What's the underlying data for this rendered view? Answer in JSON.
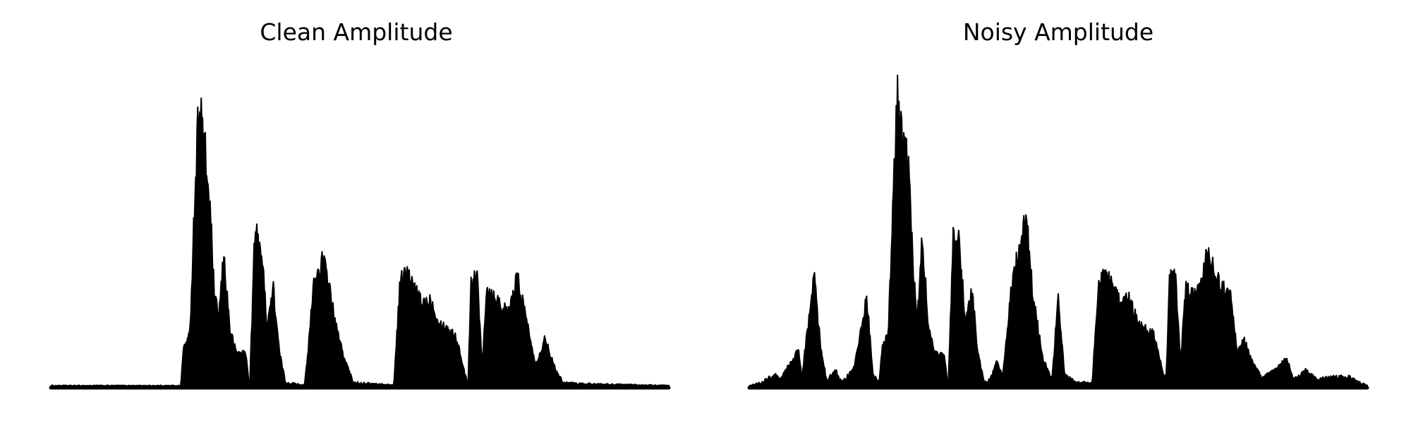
{
  "chart_data": [
    {
      "type": "area",
      "title": "Clean Amplitude",
      "xlabel": "",
      "ylabel": "",
      "ylim": [
        0,
        1.0
      ],
      "axes_visible": false,
      "grid": false,
      "series_color": "#000000",
      "envelope": [
        {
          "x": 0.0,
          "y": 0.008
        },
        {
          "x": 0.21,
          "y": 0.008
        },
        {
          "x": 0.215,
          "y": 0.14
        },
        {
          "x": 0.225,
          "y": 0.18
        },
        {
          "x": 0.232,
          "y": 0.6
        },
        {
          "x": 0.24,
          "y": 1.0
        },
        {
          "x": 0.25,
          "y": 0.8
        },
        {
          "x": 0.258,
          "y": 0.6
        },
        {
          "x": 0.265,
          "y": 0.3
        },
        {
          "x": 0.272,
          "y": 0.25
        },
        {
          "x": 0.28,
          "y": 0.45
        },
        {
          "x": 0.29,
          "y": 0.2
        },
        {
          "x": 0.3,
          "y": 0.12
        },
        {
          "x": 0.315,
          "y": 0.12
        },
        {
          "x": 0.322,
          "y": 0.01
        },
        {
          "x": 0.33,
          "y": 0.53
        },
        {
          "x": 0.34,
          "y": 0.49
        },
        {
          "x": 0.35,
          "y": 0.22
        },
        {
          "x": 0.36,
          "y": 0.34
        },
        {
          "x": 0.37,
          "y": 0.12
        },
        {
          "x": 0.38,
          "y": 0.02
        },
        {
          "x": 0.41,
          "y": 0.01
        },
        {
          "x": 0.415,
          "y": 0.09
        },
        {
          "x": 0.425,
          "y": 0.35
        },
        {
          "x": 0.44,
          "y": 0.44
        },
        {
          "x": 0.45,
          "y": 0.36
        },
        {
          "x": 0.46,
          "y": 0.22
        },
        {
          "x": 0.475,
          "y": 0.1
        },
        {
          "x": 0.49,
          "y": 0.02
        },
        {
          "x": 0.555,
          "y": 0.01
        },
        {
          "x": 0.565,
          "y": 0.36
        },
        {
          "x": 0.575,
          "y": 0.4
        },
        {
          "x": 0.59,
          "y": 0.33
        },
        {
          "x": 0.6,
          "y": 0.29
        },
        {
          "x": 0.615,
          "y": 0.3
        },
        {
          "x": 0.63,
          "y": 0.22
        },
        {
          "x": 0.655,
          "y": 0.18
        },
        {
          "x": 0.67,
          "y": 0.05
        },
        {
          "x": 0.675,
          "y": 0.01
        },
        {
          "x": 0.68,
          "y": 0.37
        },
        {
          "x": 0.69,
          "y": 0.38
        },
        {
          "x": 0.698,
          "y": 0.08
        },
        {
          "x": 0.705,
          "y": 0.34
        },
        {
          "x": 0.72,
          "y": 0.31
        },
        {
          "x": 0.74,
          "y": 0.25
        },
        {
          "x": 0.755,
          "y": 0.38
        },
        {
          "x": 0.77,
          "y": 0.23
        },
        {
          "x": 0.785,
          "y": 0.08
        },
        {
          "x": 0.8,
          "y": 0.17
        },
        {
          "x": 0.815,
          "y": 0.07
        },
        {
          "x": 0.83,
          "y": 0.02
        },
        {
          "x": 0.86,
          "y": 0.015
        },
        {
          "x": 1.0,
          "y": 0.008
        }
      ]
    },
    {
      "type": "area",
      "title": "Noisy Amplitude",
      "xlabel": "",
      "ylabel": "",
      "ylim": [
        0,
        1.0
      ],
      "axes_visible": false,
      "grid": false,
      "series_color": "#000000",
      "envelope": [
        {
          "x": 0.0,
          "y": 0.008
        },
        {
          "x": 0.02,
          "y": 0.02
        },
        {
          "x": 0.04,
          "y": 0.05
        },
        {
          "x": 0.05,
          "y": 0.03
        },
        {
          "x": 0.08,
          "y": 0.13
        },
        {
          "x": 0.085,
          "y": 0.03
        },
        {
          "x": 0.105,
          "y": 0.39
        },
        {
          "x": 0.115,
          "y": 0.15
        },
        {
          "x": 0.125,
          "y": 0.03
        },
        {
          "x": 0.14,
          "y": 0.06
        },
        {
          "x": 0.15,
          "y": 0.02
        },
        {
          "x": 0.17,
          "y": 0.07
        },
        {
          "x": 0.19,
          "y": 0.31
        },
        {
          "x": 0.2,
          "y": 0.05
        },
        {
          "x": 0.21,
          "y": 0.02
        },
        {
          "x": 0.215,
          "y": 0.14
        },
        {
          "x": 0.225,
          "y": 0.18
        },
        {
          "x": 0.232,
          "y": 0.6
        },
        {
          "x": 0.24,
          "y": 1.0
        },
        {
          "x": 0.25,
          "y": 0.8
        },
        {
          "x": 0.258,
          "y": 0.78
        },
        {
          "x": 0.265,
          "y": 0.4
        },
        {
          "x": 0.272,
          "y": 0.25
        },
        {
          "x": 0.28,
          "y": 0.53
        },
        {
          "x": 0.29,
          "y": 0.2
        },
        {
          "x": 0.3,
          "y": 0.12
        },
        {
          "x": 0.315,
          "y": 0.12
        },
        {
          "x": 0.322,
          "y": 0.01
        },
        {
          "x": 0.33,
          "y": 0.53
        },
        {
          "x": 0.34,
          "y": 0.49
        },
        {
          "x": 0.35,
          "y": 0.22
        },
        {
          "x": 0.36,
          "y": 0.34
        },
        {
          "x": 0.37,
          "y": 0.12
        },
        {
          "x": 0.38,
          "y": 0.02
        },
        {
          "x": 0.39,
          "y": 0.03
        },
        {
          "x": 0.4,
          "y": 0.09
        },
        {
          "x": 0.41,
          "y": 0.04
        },
        {
          "x": 0.425,
          "y": 0.35
        },
        {
          "x": 0.44,
          "y": 0.52
        },
        {
          "x": 0.448,
          "y": 0.58
        },
        {
          "x": 0.46,
          "y": 0.3
        },
        {
          "x": 0.475,
          "y": 0.1
        },
        {
          "x": 0.49,
          "y": 0.03
        },
        {
          "x": 0.5,
          "y": 0.31
        },
        {
          "x": 0.51,
          "y": 0.05
        },
        {
          "x": 0.53,
          "y": 0.02
        },
        {
          "x": 0.555,
          "y": 0.02
        },
        {
          "x": 0.565,
          "y": 0.36
        },
        {
          "x": 0.575,
          "y": 0.4
        },
        {
          "x": 0.59,
          "y": 0.33
        },
        {
          "x": 0.6,
          "y": 0.29
        },
        {
          "x": 0.615,
          "y": 0.3
        },
        {
          "x": 0.63,
          "y": 0.22
        },
        {
          "x": 0.655,
          "y": 0.18
        },
        {
          "x": 0.67,
          "y": 0.05
        },
        {
          "x": 0.675,
          "y": 0.05
        },
        {
          "x": 0.68,
          "y": 0.37
        },
        {
          "x": 0.69,
          "y": 0.38
        },
        {
          "x": 0.698,
          "y": 0.08
        },
        {
          "x": 0.705,
          "y": 0.34
        },
        {
          "x": 0.72,
          "y": 0.31
        },
        {
          "x": 0.73,
          "y": 0.33
        },
        {
          "x": 0.74,
          "y": 0.47
        },
        {
          "x": 0.755,
          "y": 0.38
        },
        {
          "x": 0.765,
          "y": 0.35
        },
        {
          "x": 0.78,
          "y": 0.3
        },
        {
          "x": 0.79,
          "y": 0.12
        },
        {
          "x": 0.8,
          "y": 0.17
        },
        {
          "x": 0.815,
          "y": 0.08
        },
        {
          "x": 0.83,
          "y": 0.04
        },
        {
          "x": 0.85,
          "y": 0.06
        },
        {
          "x": 0.87,
          "y": 0.1
        },
        {
          "x": 0.88,
          "y": 0.03
        },
        {
          "x": 0.9,
          "y": 0.06
        },
        {
          "x": 0.92,
          "y": 0.03
        },
        {
          "x": 0.94,
          "y": 0.04
        },
        {
          "x": 0.97,
          "y": 0.04
        },
        {
          "x": 1.0,
          "y": 0.008
        }
      ]
    }
  ]
}
